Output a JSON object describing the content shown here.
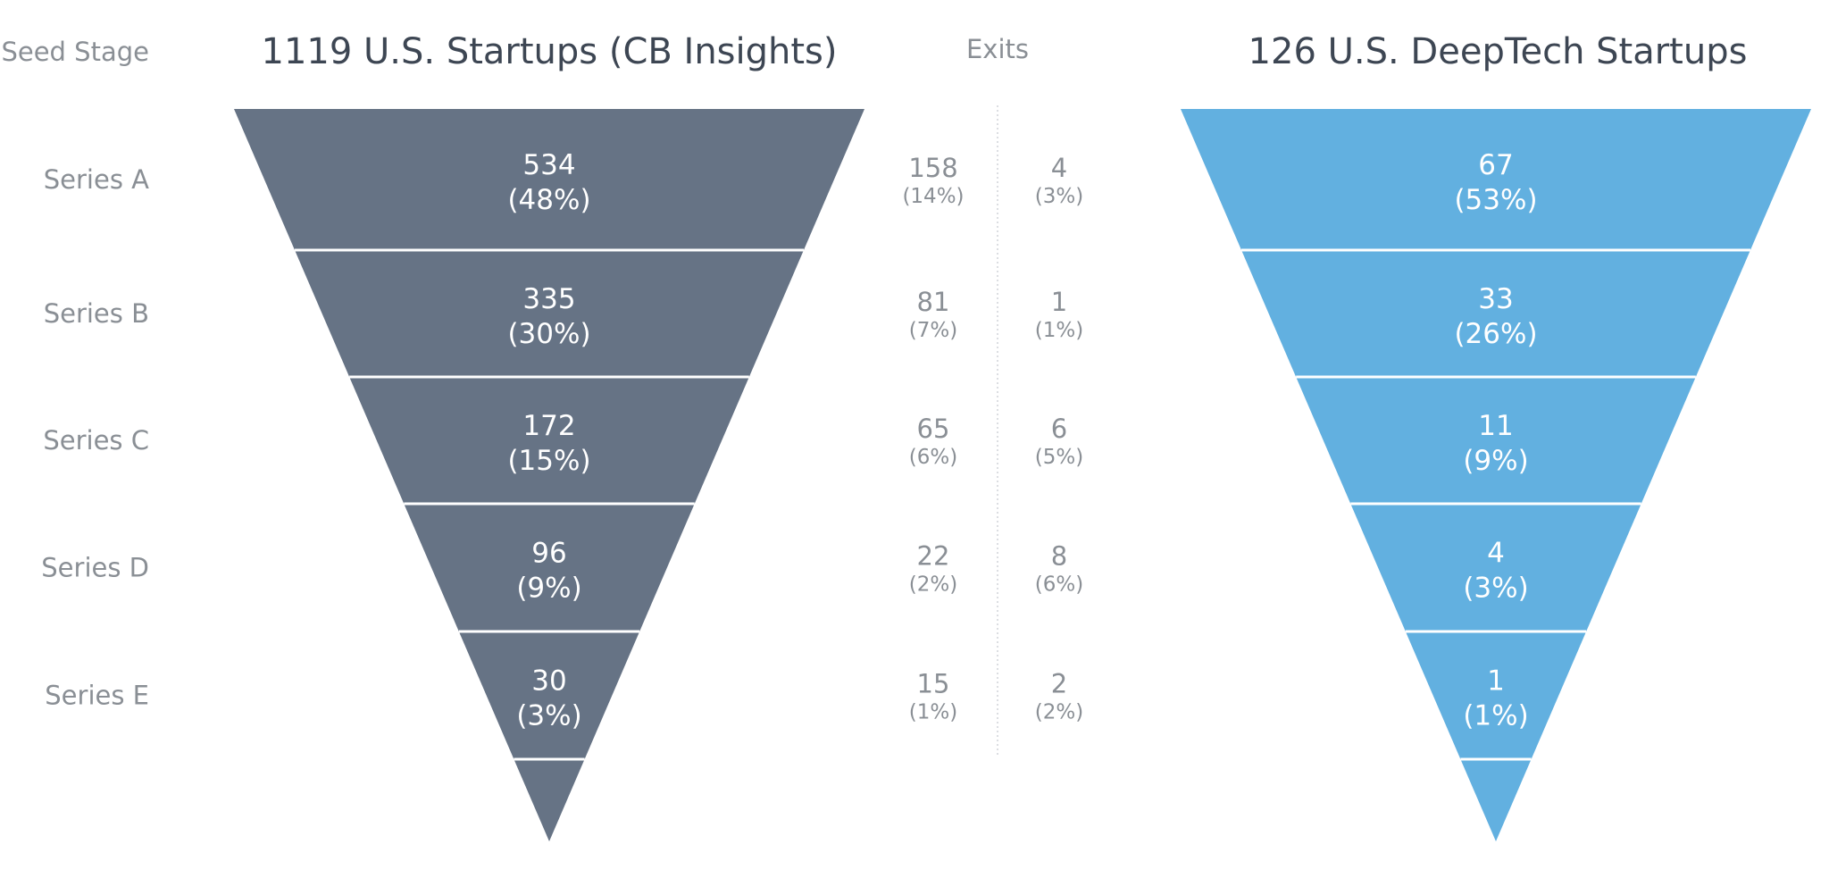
{
  "chart_data": {
    "type": "funnel",
    "seed_label": "Seed Stage",
    "exits_label": "Exits",
    "stages": [
      "Series A",
      "Series B",
      "Series C",
      "Series D",
      "Series E"
    ],
    "funnels": [
      {
        "title": "1119 U.S. Startups (CB Insights)",
        "color": "#667385",
        "total": 1119,
        "segments": [
          {
            "value": "534",
            "pct": "(48%)"
          },
          {
            "value": "335",
            "pct": "(30%)"
          },
          {
            "value": "172",
            "pct": "(15%)"
          },
          {
            "value": "96",
            "pct": "(9%)"
          },
          {
            "value": "30",
            "pct": "(3%)"
          }
        ],
        "exits": [
          {
            "value": "158",
            "pct": "(14%)"
          },
          {
            "value": "81",
            "pct": "(7%)"
          },
          {
            "value": "65",
            "pct": "(6%)"
          },
          {
            "value": "22",
            "pct": "(2%)"
          },
          {
            "value": "15",
            "pct": "(1%)"
          }
        ]
      },
      {
        "title": "126 U.S. DeepTech Startups",
        "color": "#62b0e0",
        "total": 126,
        "segments": [
          {
            "value": "67",
            "pct": "(53%)"
          },
          {
            "value": "33",
            "pct": "(26%)"
          },
          {
            "value": "11",
            "pct": "(9%)"
          },
          {
            "value": "4",
            "pct": "(3%)"
          },
          {
            "value": "1",
            "pct": "(1%)"
          }
        ],
        "exits": [
          {
            "value": "4",
            "pct": "(3%)"
          },
          {
            "value": "1",
            "pct": "(1%)"
          },
          {
            "value": "6",
            "pct": "(5%)"
          },
          {
            "value": "8",
            "pct": "(6%)"
          },
          {
            "value": "2",
            "pct": "(2%)"
          }
        ]
      }
    ]
  }
}
